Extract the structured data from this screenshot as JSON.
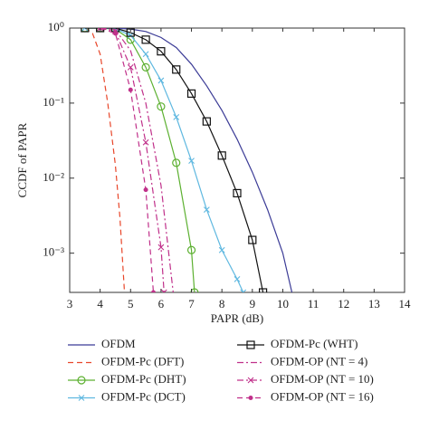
{
  "chart_data": {
    "type": "line",
    "xlabel": "PAPR (dB)",
    "ylabel": "CCDF of PAPR",
    "xlim": [
      3,
      14
    ],
    "xticks": [
      3,
      4,
      5,
      6,
      7,
      8,
      9,
      10,
      11,
      12,
      13,
      14
    ],
    "ylim": [
      0.0003,
      1
    ],
    "yscale": "log",
    "yticks": [
      {
        "value": 0.001,
        "label": "10⁻³"
      },
      {
        "value": 0.01,
        "label": "10⁻²"
      },
      {
        "value": 0.1,
        "label": "10⁻¹"
      },
      {
        "value": 1,
        "label": "10⁰"
      }
    ],
    "grid": false,
    "legend": "bottom",
    "series": [
      {
        "name": "OFDM",
        "color": "#3b3b96",
        "dash": "solid",
        "marker": "none",
        "x": [
          4.5,
          5,
          5.5,
          6,
          6.5,
          7,
          7.5,
          8,
          8.5,
          9,
          9.5,
          10,
          10.3
        ],
        "values": [
          1,
          0.97,
          0.9,
          0.75,
          0.55,
          0.33,
          0.17,
          0.08,
          0.033,
          0.012,
          0.0038,
          0.001,
          0.0003
        ]
      },
      {
        "name": "OFDM-Pc (DFT)",
        "color": "#e8462a",
        "dash": "dashed",
        "marker": "none",
        "x": [
          3.5,
          3.75,
          4,
          4.25,
          4.5,
          4.65,
          4.8
        ],
        "values": [
          1,
          0.85,
          0.45,
          0.1,
          0.015,
          0.003,
          0.0003
        ]
      },
      {
        "name": "OFDM-Pc (DHT)",
        "color": "#5cb030",
        "dash": "solid",
        "marker": "circle",
        "x": [
          3.5,
          4,
          4.5,
          5,
          5.5,
          6,
          6.5,
          7,
          7.1
        ],
        "values": [
          1,
          1,
          0.97,
          0.7,
          0.3,
          0.09,
          0.016,
          0.0011,
          0.0003
        ]
      },
      {
        "name": "OFDM-Pc (DCT)",
        "color": "#5fb8e0",
        "dash": "solid",
        "marker": "x",
        "x": [
          3.5,
          4,
          4.5,
          5,
          5.5,
          6,
          6.5,
          7,
          7.5,
          8,
          8.5,
          8.7
        ],
        "values": [
          1,
          1,
          0.98,
          0.8,
          0.45,
          0.2,
          0.065,
          0.017,
          0.0038,
          0.0011,
          0.00045,
          0.0003
        ]
      },
      {
        "name": "OFDM-Pc (WHT)",
        "color": "#111111",
        "dash": "solid",
        "marker": "square",
        "x": [
          3.5,
          4,
          4.5,
          5,
          5.5,
          6,
          6.5,
          7,
          7.5,
          8,
          8.5,
          9,
          9.35
        ],
        "values": [
          1,
          1,
          1,
          0.87,
          0.7,
          0.49,
          0.28,
          0.134,
          0.057,
          0.02,
          0.0063,
          0.0015,
          0.0003
        ]
      },
      {
        "name": "OFDM-OP (NT = 4)",
        "color": "#c0308a",
        "dash": "dashdot",
        "marker": "none",
        "x": [
          4,
          4.5,
          5,
          5.5,
          6,
          6.4
        ],
        "values": [
          1,
          0.95,
          0.5,
          0.1,
          0.008,
          0.0003
        ]
      },
      {
        "name": "OFDM-OP (NT = 10)",
        "color": "#c0308a",
        "dash": "dashdot",
        "marker": "x",
        "x": [
          4,
          4.5,
          5,
          5.5,
          6,
          6.1
        ],
        "values": [
          1,
          0.9,
          0.3,
          0.03,
          0.0012,
          0.0003
        ]
      },
      {
        "name": "OFDM-OP (NT = 16)",
        "color": "#c0308a",
        "dash": "dashed",
        "marker": "dot",
        "x": [
          4,
          4.5,
          5,
          5.5,
          5.75
        ],
        "values": [
          1,
          0.85,
          0.15,
          0.007,
          0.0003
        ]
      }
    ]
  }
}
